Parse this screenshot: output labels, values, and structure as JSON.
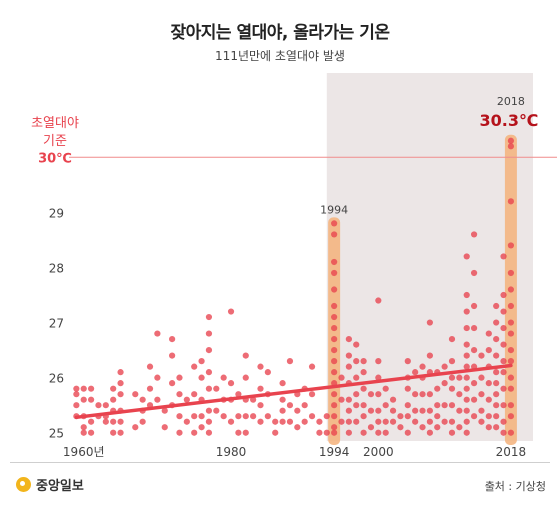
{
  "header": {
    "title": "잦아지는 열대야, 올라가는 기온",
    "subtitle": "111년만에 초열대야 발생"
  },
  "footer": {
    "logo": "중앙일보",
    "source": "출처 : 기상청"
  },
  "colors": {
    "dot": "#e8434e",
    "trend": "#e8434e",
    "highlight_band": "#f4b27a",
    "shaded_region": "#ece6e6",
    "threshold_line": "#f08c8c",
    "threshold_text": "#e8434e",
    "max_label": "#b5121b"
  },
  "chart_data": {
    "type": "scatter",
    "title": "잦아지는 열대야, 올라가는 기온",
    "subtitle": "111년만에 초열대야 발생",
    "xlim": [
      1958,
      2021
    ],
    "ylim": [
      24.85,
      30.55
    ],
    "x_ticks": [
      {
        "value": 1960,
        "label": "1960년"
      },
      {
        "value": 1980,
        "label": "1980"
      },
      {
        "value": 1994,
        "label": "1994"
      },
      {
        "value": 2000,
        "label": "2000"
      },
      {
        "value": 2018,
        "label": "2018"
      }
    ],
    "y_ticks": [
      25,
      26,
      27,
      28,
      29
    ],
    "threshold": {
      "value": 30,
      "label_lines": [
        "초열대야",
        "기준"
      ],
      "value_label": "30℃"
    },
    "highlights": [
      {
        "x": 1994,
        "top": 28.8,
        "label": "1994"
      },
      {
        "x": 2018,
        "top": 30.3,
        "label": "2018",
        "value_label": "30.3℃"
      }
    ],
    "shaded_region": [
      1993,
      2021
    ],
    "trend": {
      "x": [
        1959,
        2018
      ],
      "y": [
        25.28,
        26.22
      ]
    },
    "series": [
      {
        "year": 1959,
        "values": [
          25.8,
          25.7,
          25.5,
          25.3
        ]
      },
      {
        "year": 1960,
        "values": [
          25.8,
          25.6,
          25.3,
          25.1,
          25.0
        ]
      },
      {
        "year": 1961,
        "values": [
          25.8,
          25.6,
          25.2,
          25.0
        ]
      },
      {
        "year": 1962,
        "values": [
          25.5,
          25.3
        ]
      },
      {
        "year": 1963,
        "values": [
          25.5,
          25.3,
          25.2
        ]
      },
      {
        "year": 1964,
        "values": [
          25.8,
          25.6,
          25.4,
          25.2,
          25.0
        ]
      },
      {
        "year": 1965,
        "values": [
          26.1,
          25.9,
          25.7,
          25.4,
          25.2,
          25.0
        ]
      },
      {
        "year": 1967,
        "values": [
          25.7,
          25.1
        ]
      },
      {
        "year": 1968,
        "values": [
          25.6,
          25.4,
          25.2
        ]
      },
      {
        "year": 1969,
        "values": [
          26.2,
          25.8,
          25.5
        ]
      },
      {
        "year": 1970,
        "values": [
          26.8,
          26.0,
          25.6
        ]
      },
      {
        "year": 1971,
        "values": [
          25.4,
          25.1
        ]
      },
      {
        "year": 1972,
        "values": [
          26.7,
          26.4,
          25.9,
          25.5
        ]
      },
      {
        "year": 1973,
        "values": [
          26.0,
          25.7,
          25.3,
          25.0
        ]
      },
      {
        "year": 1974,
        "values": [
          25.6,
          25.2
        ]
      },
      {
        "year": 1975,
        "values": [
          26.2,
          25.7,
          25.3,
          25.0
        ]
      },
      {
        "year": 1976,
        "values": [
          26.3,
          26.0,
          25.6,
          25.3,
          25.1
        ]
      },
      {
        "year": 1977,
        "values": [
          27.1,
          26.8,
          26.5,
          26.1,
          25.8,
          25.4,
          25.2,
          25.0
        ]
      },
      {
        "year": 1978,
        "values": [
          25.8,
          25.4
        ]
      },
      {
        "year": 1979,
        "values": [
          26.0,
          25.6,
          25.3
        ]
      },
      {
        "year": 1980,
        "values": [
          27.2,
          25.9,
          25.6,
          25.2
        ]
      },
      {
        "year": 1981,
        "values": [
          25.7,
          25.3,
          25.0
        ]
      },
      {
        "year": 1982,
        "values": [
          26.4,
          26.0,
          25.6,
          25.3,
          25.0
        ]
      },
      {
        "year": 1983,
        "values": [
          25.6,
          25.3
        ]
      },
      {
        "year": 1984,
        "values": [
          26.2,
          25.8,
          25.5,
          25.2
        ]
      },
      {
        "year": 1985,
        "values": [
          26.1,
          25.7,
          25.3
        ]
      },
      {
        "year": 1986,
        "values": [
          25.2,
          25.0
        ]
      },
      {
        "year": 1987,
        "values": [
          25.9,
          25.6,
          25.4,
          25.2
        ]
      },
      {
        "year": 1988,
        "values": [
          26.3,
          25.5,
          25.2
        ]
      },
      {
        "year": 1989,
        "values": [
          25.7,
          25.4,
          25.1
        ]
      },
      {
        "year": 1990,
        "values": [
          25.8,
          25.5,
          25.2
        ]
      },
      {
        "year": 1991,
        "values": [
          26.2,
          25.7,
          25.3
        ]
      },
      {
        "year": 1992,
        "values": [
          25.2,
          25.0
        ]
      },
      {
        "year": 1993,
        "values": [
          25.3,
          25.0
        ]
      },
      {
        "year": 1994,
        "values": [
          28.8,
          28.6,
          28.1,
          27.9,
          27.6,
          27.3,
          27.1,
          26.9,
          26.7,
          26.5,
          26.3,
          26.1,
          25.9,
          25.7,
          25.5,
          25.3,
          25.1,
          25.0
        ]
      },
      {
        "year": 1995,
        "values": [
          26.0,
          25.6,
          25.2
        ]
      },
      {
        "year": 1996,
        "values": [
          26.7,
          26.4,
          26.2,
          25.9,
          25.6,
          25.4,
          25.2,
          25.0
        ]
      },
      {
        "year": 1997,
        "values": [
          26.6,
          26.3,
          26.0,
          25.7,
          25.5,
          25.2
        ]
      },
      {
        "year": 1998,
        "values": [
          26.3,
          26.1,
          25.8,
          25.5,
          25.3,
          25.0
        ]
      },
      {
        "year": 1999,
        "values": [
          25.7,
          25.4,
          25.1
        ]
      },
      {
        "year": 2000,
        "values": [
          27.4,
          26.3,
          26.0,
          25.7,
          25.4,
          25.2,
          25.0
        ]
      },
      {
        "year": 2001,
        "values": [
          25.8,
          25.5,
          25.2,
          25.0
        ]
      },
      {
        "year": 2002,
        "values": [
          25.6,
          25.4,
          25.2
        ]
      },
      {
        "year": 2003,
        "values": [
          25.3,
          25.1
        ]
      },
      {
        "year": 2004,
        "values": [
          26.3,
          26.0,
          25.8,
          25.5,
          25.3,
          25.0
        ]
      },
      {
        "year": 2005,
        "values": [
          26.1,
          25.7,
          25.4,
          25.2
        ]
      },
      {
        "year": 2006,
        "values": [
          26.2,
          26.0,
          25.7,
          25.4,
          25.1
        ]
      },
      {
        "year": 2007,
        "values": [
          27.0,
          26.4,
          26.1,
          25.7,
          25.4,
          25.2,
          25.0
        ]
      },
      {
        "year": 2008,
        "values": [
          26.1,
          25.8,
          25.5,
          25.3,
          25.1
        ]
      },
      {
        "year": 2009,
        "values": [
          26.2,
          25.9,
          25.5,
          25.2
        ]
      },
      {
        "year": 2010,
        "values": [
          26.7,
          26.3,
          26.0,
          25.8,
          25.5,
          25.2,
          25.0
        ]
      },
      {
        "year": 2011,
        "values": [
          26.0,
          25.7,
          25.4,
          25.1
        ]
      },
      {
        "year": 2012,
        "values": [
          28.2,
          27.5,
          27.2,
          26.9,
          26.6,
          26.4,
          26.2,
          26.0,
          25.8,
          25.6,
          25.4,
          25.2,
          25.0
        ]
      },
      {
        "year": 2013,
        "values": [
          28.6,
          27.9,
          27.3,
          26.9,
          26.5,
          26.2,
          25.9,
          25.6,
          25.3
        ]
      },
      {
        "year": 2014,
        "values": [
          26.4,
          26.0,
          25.7,
          25.4,
          25.2
        ]
      },
      {
        "year": 2015,
        "values": [
          26.8,
          26.5,
          26.2,
          25.9,
          25.6,
          25.3,
          25.1
        ]
      },
      {
        "year": 2016,
        "values": [
          27.3,
          27.0,
          26.7,
          26.4,
          26.1,
          25.9,
          25.7,
          25.5,
          25.3,
          25.1
        ]
      },
      {
        "year": 2017,
        "values": [
          28.2,
          27.5,
          27.2,
          26.9,
          26.6,
          26.3,
          26.1,
          25.8,
          25.5,
          25.2,
          25.0
        ]
      },
      {
        "year": 2018,
        "values": [
          30.3,
          30.2,
          29.2,
          28.4,
          27.9,
          27.6,
          27.3,
          27.0,
          26.8,
          26.5,
          26.3,
          26.0,
          25.8,
          25.5,
          25.3,
          25.0
        ]
      }
    ]
  }
}
